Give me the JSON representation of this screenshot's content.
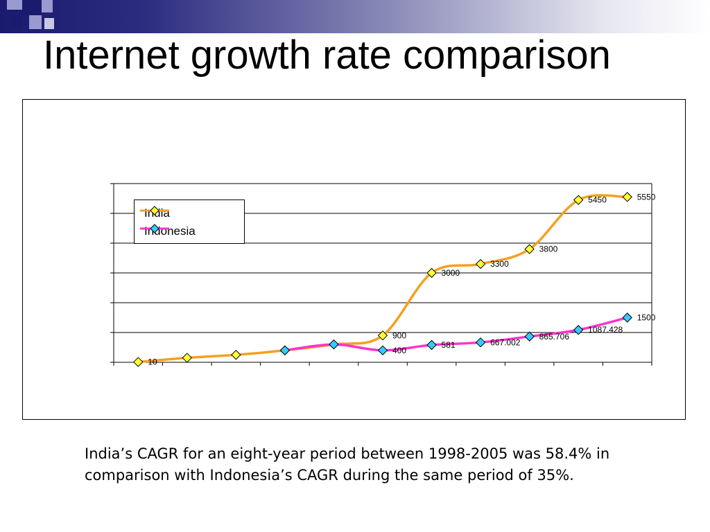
{
  "slide": {
    "title": "Internet growth rate comparison",
    "caption": "India’s CAGR for an eight-year period between 1998-2005 was 58.4% in comparison with Indonesia’s CAGR during the same period of 35%.",
    "colors": {
      "top_bar_dark": "#1a1a6e",
      "square_dark": "#1a1a6e",
      "square_light": "#9a9ad0"
    }
  },
  "chart_data": {
    "type": "line",
    "title": "",
    "xlabel": "",
    "ylabel": "",
    "ylim": [
      0,
      6000
    ],
    "grid": true,
    "legend_position": "top-left",
    "series": [
      {
        "name": "India",
        "color": "#f5a01e",
        "marker_fill": "#ffff33",
        "values": [
          10,
          150,
          250,
          400,
          600,
          900,
          3000,
          3300,
          3800,
          5450,
          5550
        ],
        "labels": [
          "10",
          "",
          "",
          "",
          "",
          "900",
          "3000",
          "3300",
          "3800",
          "5450",
          "5550"
        ]
      },
      {
        "name": "Indonesia",
        "color": "#ff33cc",
        "marker_fill": "#33ccff",
        "values": [
          null,
          null,
          null,
          400,
          600,
          400,
          581,
          667.002,
          865.706,
          1087.428,
          1500
        ],
        "labels": [
          "",
          "",
          "",
          "",
          "",
          "400",
          "581",
          "667.002",
          "865.706",
          "1087.428",
          "1500"
        ]
      }
    ]
  }
}
